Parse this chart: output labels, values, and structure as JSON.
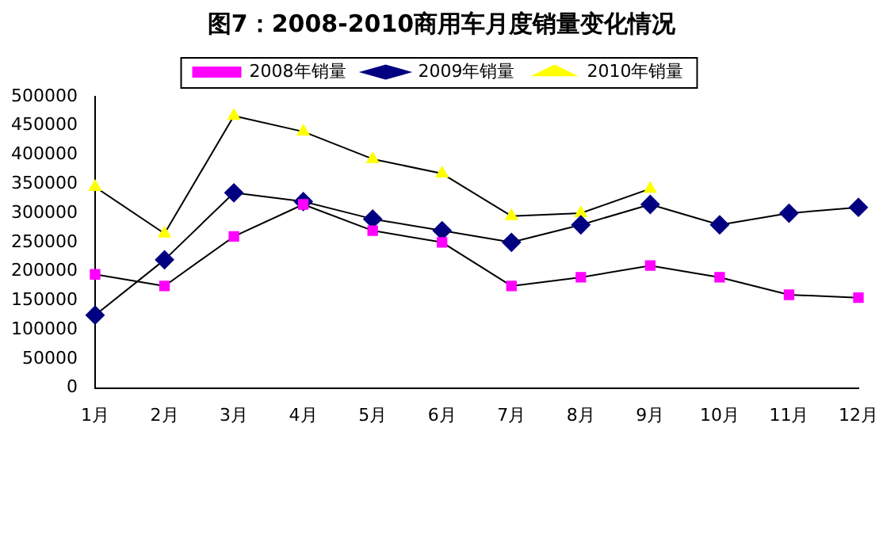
{
  "chart_data": {
    "type": "line",
    "title": "图7：2008-2010商用车月度销量变化情况",
    "categories": [
      "1月",
      "2月",
      "3月",
      "4月",
      "5月",
      "6月",
      "7月",
      "8月",
      "9月",
      "10月",
      "11月",
      "12月"
    ],
    "series": [
      {
        "name": "2008年销量",
        "color": "#ff00ff",
        "marker": "square",
        "values": [
          195000,
          175000,
          260000,
          315000,
          270000,
          250000,
          175000,
          190000,
          210000,
          190000,
          160000,
          155000
        ]
      },
      {
        "name": "2009年销量",
        "color": "#000080",
        "marker": "diamond",
        "values": [
          125000,
          220000,
          335000,
          320000,
          290000,
          270000,
          250000,
          280000,
          315000,
          280000,
          300000,
          310000
        ]
      },
      {
        "name": "2010年销量",
        "color": "#ffff00",
        "marker": "triangle",
        "values": [
          345000,
          265000,
          467000,
          440000,
          393000,
          368000,
          295000,
          300000,
          342000,
          null,
          null,
          null
        ]
      }
    ],
    "ylim": [
      0,
      500000
    ],
    "yticks": [
      0,
      50000,
      100000,
      150000,
      200000,
      250000,
      300000,
      350000,
      400000,
      450000,
      500000
    ],
    "grid": false,
    "legend": "top",
    "line_style": "solid"
  }
}
